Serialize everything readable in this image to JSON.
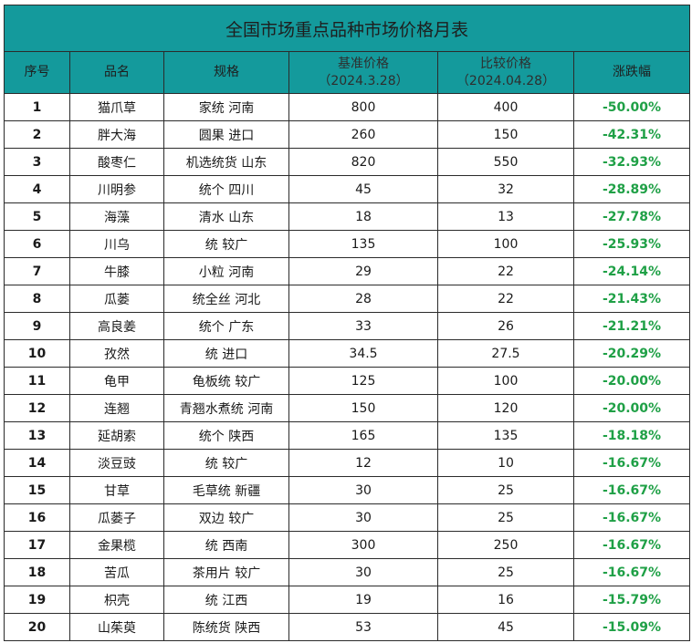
{
  "title": "全国市场重点品种市场价格月表",
  "headers": {
    "seq": "序号",
    "name": "品名",
    "spec": "规格",
    "base_price": "基准价格",
    "base_date": "（2024.3.28）",
    "compare_price": "比较价格",
    "compare_date": "（2024.04.28）",
    "change": "涨跌幅"
  },
  "colors": {
    "header_bg": "#149a9c",
    "change_text": "#1fa046",
    "border": "#2b2b2b"
  },
  "rows": [
    {
      "seq": "1",
      "name": "猫爪草",
      "spec": "家统 河南",
      "base": "800",
      "compare": "400",
      "change": "-50.00%"
    },
    {
      "seq": "2",
      "name": "胖大海",
      "spec": "圆果 进口",
      "base": "260",
      "compare": "150",
      "change": "-42.31%"
    },
    {
      "seq": "3",
      "name": "酸枣仁",
      "spec": "机选统货 山东",
      "base": "820",
      "compare": "550",
      "change": "-32.93%"
    },
    {
      "seq": "4",
      "name": "川明参",
      "spec": "统个 四川",
      "base": "45",
      "compare": "32",
      "change": "-28.89%"
    },
    {
      "seq": "5",
      "name": "海藻",
      "spec": "清水 山东",
      "base": "18",
      "compare": "13",
      "change": "-27.78%"
    },
    {
      "seq": "6",
      "name": "川乌",
      "spec": "统 较广",
      "base": "135",
      "compare": "100",
      "change": "-25.93%"
    },
    {
      "seq": "7",
      "name": "牛膝",
      "spec": "小粒 河南",
      "base": "29",
      "compare": "22",
      "change": "-24.14%"
    },
    {
      "seq": "8",
      "name": "瓜蒌",
      "spec": "统全丝 河北",
      "base": "28",
      "compare": "22",
      "change": "-21.43%"
    },
    {
      "seq": "9",
      "name": "高良姜",
      "spec": "统个 广东",
      "base": "33",
      "compare": "26",
      "change": "-21.21%"
    },
    {
      "seq": "10",
      "name": "孜然",
      "spec": "统 进口",
      "base": "34.5",
      "compare": "27.5",
      "change": "-20.29%"
    },
    {
      "seq": "11",
      "name": "龟甲",
      "spec": "龟板统 较广",
      "base": "125",
      "compare": "100",
      "change": "-20.00%"
    },
    {
      "seq": "12",
      "name": "连翘",
      "spec": "青翘水煮统 河南",
      "base": "150",
      "compare": "120",
      "change": "-20.00%"
    },
    {
      "seq": "13",
      "name": "延胡索",
      "spec": "统个 陕西",
      "base": "165",
      "compare": "135",
      "change": "-18.18%"
    },
    {
      "seq": "14",
      "name": "淡豆豉",
      "spec": "统 较广",
      "base": "12",
      "compare": "10",
      "change": "-16.67%"
    },
    {
      "seq": "15",
      "name": "甘草",
      "spec": "毛草统 新疆",
      "base": "30",
      "compare": "25",
      "change": "-16.67%"
    },
    {
      "seq": "16",
      "name": "瓜蒌子",
      "spec": "双边 较广",
      "base": "30",
      "compare": "25",
      "change": "-16.67%"
    },
    {
      "seq": "17",
      "name": "金果榄",
      "spec": "统 西南",
      "base": "300",
      "compare": "250",
      "change": "-16.67%"
    },
    {
      "seq": "18",
      "name": "苦瓜",
      "spec": "茶用片 较广",
      "base": "30",
      "compare": "25",
      "change": "-16.67%"
    },
    {
      "seq": "19",
      "name": "枳壳",
      "spec": "统 江西",
      "base": "19",
      "compare": "16",
      "change": "-15.79%"
    },
    {
      "seq": "20",
      "name": "山茱萸",
      "spec": "陈统货 陕西",
      "base": "53",
      "compare": "45",
      "change": "-15.09%"
    }
  ]
}
